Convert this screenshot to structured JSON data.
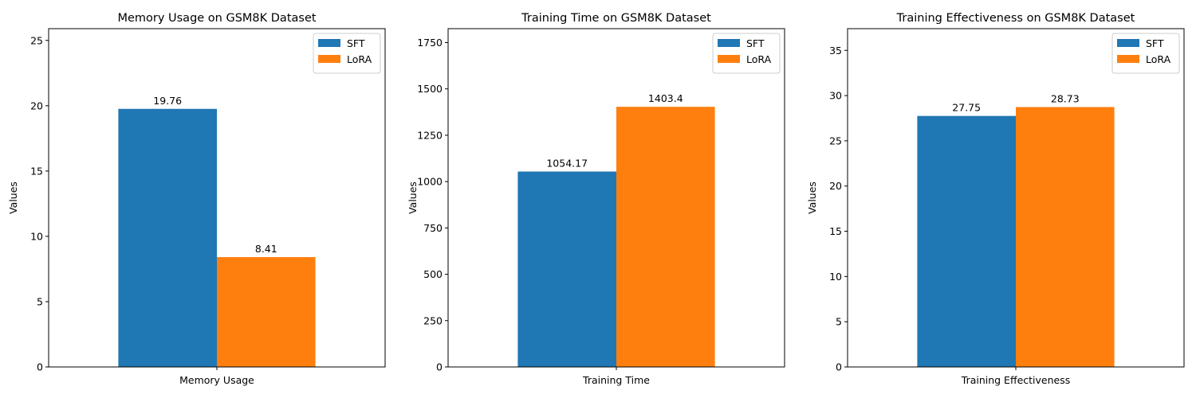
{
  "colors": {
    "sft": "#1f77b4",
    "lora": "#ff7f0e",
    "axis": "#000000"
  },
  "legend": {
    "placement": "top-right",
    "items": [
      "SFT",
      "LoRA"
    ]
  },
  "chart_data": [
    {
      "type": "bar",
      "title": "Memory Usage on GSM8K Dataset",
      "xlabel": "",
      "ylabel": "Values",
      "categories": [
        "Memory Usage"
      ],
      "series": [
        {
          "name": "SFT",
          "values": [
            19.76
          ],
          "label": "19.76"
        },
        {
          "name": "LoRA",
          "values": [
            8.41
          ],
          "label": "8.41"
        }
      ],
      "ylim": [
        0,
        25.9
      ],
      "yticks": [
        0,
        5,
        10,
        15,
        20,
        25
      ],
      "grid": false
    },
    {
      "type": "bar",
      "title": "Training Time on GSM8K Dataset",
      "xlabel": "",
      "ylabel": "Values",
      "categories": [
        "Training Time"
      ],
      "series": [
        {
          "name": "SFT",
          "values": [
            1054.17
          ],
          "label": "1054.17"
        },
        {
          "name": "LoRA",
          "values": [
            1403.4
          ],
          "label": "1403.4"
        }
      ],
      "ylim": [
        0,
        1825
      ],
      "yticks": [
        0,
        250,
        500,
        750,
        1000,
        1250,
        1500,
        1750
      ],
      "grid": false
    },
    {
      "type": "bar",
      "title": "Training Effectiveness on GSM8K Dataset",
      "xlabel": "",
      "ylabel": "Values",
      "categories": [
        "Training Effectiveness"
      ],
      "series": [
        {
          "name": "SFT",
          "values": [
            27.75
          ],
          "label": "27.75"
        },
        {
          "name": "LoRA",
          "values": [
            28.73
          ],
          "label": "28.73"
        }
      ],
      "ylim": [
        0,
        37.4
      ],
      "yticks": [
        0,
        5,
        10,
        15,
        20,
        25,
        30,
        35
      ],
      "grid": false
    }
  ]
}
